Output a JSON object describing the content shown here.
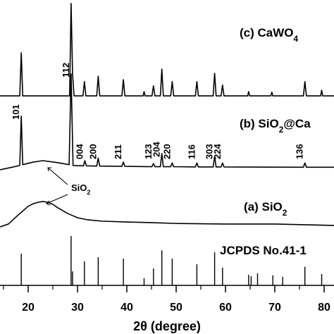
{
  "chart_data": {
    "type": "line",
    "x_label": "2θ (degree)",
    "xlim": [
      14.29,
      82
    ],
    "ylim": [
      0,
      100
    ],
    "xticks": [
      20,
      30,
      40,
      50,
      60,
      70,
      80
    ],
    "xminorticks": [
      15,
      25,
      35,
      45,
      55,
      65,
      75
    ],
    "color": "#000000",
    "series": [
      {
        "label": [
          {
            "text": "(c) CaWO"
          },
          {
            "text": "4",
            "sub": true
          }
        ],
        "x": [
          14.29,
          18.3,
          18.6,
          18.9,
          28.4,
          28.7,
          29.0,
          29.3,
          31.1,
          31.4,
          31.7,
          33.9,
          34.2,
          34.5,
          39.0,
          39.3,
          39.6,
          43.3,
          43.5,
          43.7,
          45.1,
          45.4,
          45.7,
          46.8,
          47.1,
          47.4,
          48.9,
          49.2,
          49.5,
          53.9,
          54.2,
          54.5,
          57.5,
          57.8,
          58.1,
          59.1,
          59.4,
          59.7,
          64.5,
          64.7,
          64.9,
          69.2,
          69.4,
          69.6,
          75.8,
          76.1,
          76.4,
          79.3,
          79.5,
          79.7,
          82
        ],
        "values": [
          66.4,
          66.4,
          81.5,
          66.4,
          66.4,
          98.8,
          74,
          66.4,
          66.4,
          71.4,
          66.4,
          66.4,
          73.3,
          66.4,
          66.4,
          72.1,
          66.4,
          66.4,
          67.9,
          66.4,
          66.4,
          69.9,
          66.4,
          66.4,
          75.8,
          66.4,
          66.4,
          71.4,
          66.4,
          66.4,
          71.4,
          66.4,
          66.4,
          74.3,
          66.4,
          66.4,
          70.2,
          66.4,
          66.4,
          67.9,
          66.4,
          66.4,
          67.7,
          66.4,
          66.4,
          71.4,
          66.4,
          66.4,
          68.4,
          66.4,
          66.4
        ]
      },
      {
        "label": [
          {
            "text": "(b) SiO"
          },
          {
            "text": "2",
            "sub": true
          },
          {
            "text": "@Ca"
          }
        ],
        "x": [
          14.29,
          17,
          18.3,
          18.6,
          18.9,
          21,
          23,
          26,
          28.3,
          28.7,
          29.1,
          31.2,
          31.5,
          31.8,
          33.9,
          34.2,
          34.5,
          39,
          39.3,
          39.6,
          45.1,
          45.4,
          45.7,
          46.8,
          47.1,
          47.4,
          48.9,
          49.2,
          49.5,
          53.9,
          54.2,
          54.5,
          57.5,
          57.8,
          58.1,
          59.1,
          59.4,
          59.7,
          75.8,
          76.1,
          76.4,
          82
        ],
        "values": [
          40.5,
          41.5,
          42.0,
          59.3,
          42.3,
          43.2,
          43.7,
          43.0,
          42.3,
          74.1,
          42.0,
          41.9,
          43.7,
          41.9,
          41.8,
          44.6,
          41.8,
          41.7,
          43.2,
          41.7,
          41.6,
          42.7,
          41.6,
          41.6,
          46.2,
          41.6,
          41.6,
          42.9,
          41.6,
          41.5,
          42.9,
          41.5,
          41.5,
          45.2,
          41.5,
          41.5,
          42.9,
          41.5,
          41.4,
          42.9,
          41.4,
          41.4
        ]
      },
      {
        "label": [
          {
            "text": "(a) SiO"
          },
          {
            "text": "2",
            "sub": true
          }
        ],
        "x": [
          14.29,
          16,
          18,
          20,
          21,
          22,
          23,
          24,
          25,
          26,
          28,
          30,
          32,
          35,
          40,
          45,
          50,
          60,
          70,
          82
        ],
        "values": [
          20.5,
          21.5,
          24.7,
          27.7,
          28.6,
          29.1,
          29.4,
          29.1,
          28.4,
          27.2,
          25.2,
          23.7,
          23.0,
          22.5,
          22.2,
          22.0,
          21.7,
          21.5,
          21.5,
          21.0
        ]
      },
      {
        "label": [
          {
            "text": "JCPDS No.41-1"
          }
        ],
        "style": "stick",
        "x": [
          18.6,
          28.7,
          29.0,
          31.4,
          34.2,
          39.3,
          43.5,
          45.4,
          47.1,
          49.2,
          54.2,
          57.8,
          59.4,
          64.7,
          65.2,
          66.5,
          69.6,
          71.6,
          76.1,
          79.5
        ],
        "values": [
          11.1,
          17.3,
          4.9,
          8.4,
          9.9,
          9.4,
          2.5,
          5.9,
          12.3,
          9.4,
          7.4,
          11.6,
          6.2,
          3.7,
          3.2,
          4.2,
          3.5,
          3.0,
          6.5,
          4.0
        ]
      }
    ],
    "peak_labels": [
      {
        "x": 18.6,
        "text": "101"
      },
      {
        "x": 28.7,
        "text": "112"
      },
      {
        "x": 31.5,
        "text": "004"
      },
      {
        "x": 34.2,
        "text": "200"
      },
      {
        "x": 39.3,
        "text": "211"
      },
      {
        "x": 45.4,
        "text": "123"
      },
      {
        "x": 47.1,
        "text": "204"
      },
      {
        "x": 49.2,
        "text": "220"
      },
      {
        "x": 54.2,
        "text": "116"
      },
      {
        "x": 57.8,
        "text": "303"
      },
      {
        "x": 59.4,
        "text": "224"
      },
      {
        "x": 76.1,
        "text": "136"
      }
    ],
    "annotation": [
      {
        "text": "SiO"
      },
      {
        "text": "2",
        "sub": true
      }
    ]
  }
}
